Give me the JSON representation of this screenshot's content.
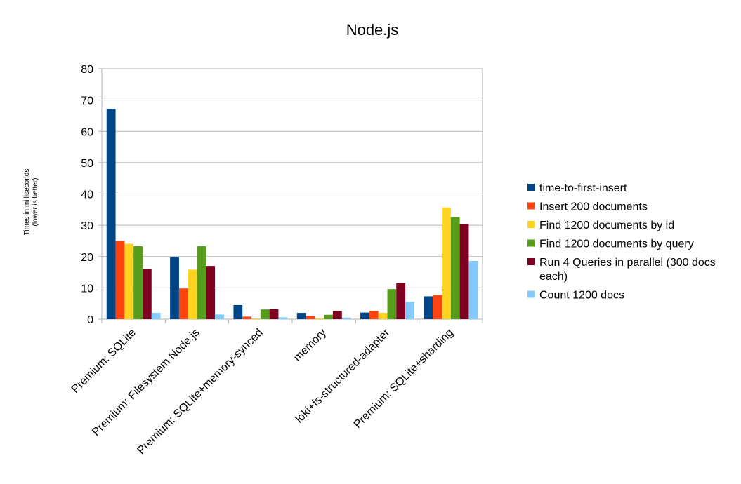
{
  "chart_data": {
    "type": "bar",
    "title": "Node.js",
    "ylabel": [
      "Times in milliseconds",
      "(lower is better)"
    ],
    "xlabel": "",
    "ylim": [
      0,
      80
    ],
    "yticks": [
      0,
      10,
      20,
      30,
      40,
      50,
      60,
      70,
      80
    ],
    "grid": true,
    "legend_position": "right",
    "categories": [
      "Premium: SQLite",
      "Premium: Filesystem Node.js",
      "Premium: SQLite+memory-synced",
      "memory",
      "loki+fs-structured-adapter",
      "Premium: SQLite+sharding"
    ],
    "series": [
      {
        "name": "time-to-first-insert",
        "color": "#004586",
        "values": [
          67.2,
          19.8,
          4.5,
          2.0,
          2.1,
          7.3
        ]
      },
      {
        "name": "Insert 200 documents",
        "color": "#ff420e",
        "values": [
          25.0,
          9.8,
          0.8,
          1.0,
          2.6,
          7.7
        ]
      },
      {
        "name": "Find 1200 documents by id",
        "color": "#ffd320",
        "values": [
          24.1,
          15.8,
          0.2,
          0.3,
          2.0,
          35.7
        ]
      },
      {
        "name": "Find 1200 documents by query",
        "color": "#579d1c",
        "values": [
          23.3,
          23.3,
          3.1,
          1.4,
          9.6,
          32.6
        ]
      },
      {
        "name": "Run 4 Queries in parallel (300 docs each)",
        "legend_lines": [
          "Run 4 Queries in parallel (300 docs",
          "each)"
        ],
        "color": "#7e0021",
        "values": [
          16.0,
          17.0,
          3.2,
          2.6,
          11.6,
          30.3
        ]
      },
      {
        "name": "Count 1200 docs",
        "color": "#83caff",
        "values": [
          2.0,
          1.5,
          0.6,
          0.5,
          5.6,
          18.6
        ]
      }
    ]
  }
}
